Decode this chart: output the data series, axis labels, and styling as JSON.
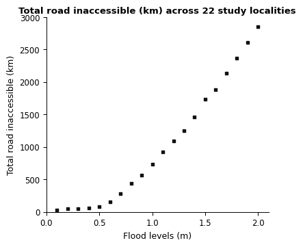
{
  "x": [
    0.1,
    0.2,
    0.3,
    0.4,
    0.5,
    0.6,
    0.7,
    0.8,
    0.9,
    1.0,
    1.1,
    1.2,
    1.3,
    1.4,
    1.5,
    1.6,
    1.7,
    1.8,
    1.9,
    2.0
  ],
  "y": [
    25,
    45,
    55,
    65,
    85,
    150,
    285,
    440,
    565,
    730,
    920,
    1090,
    1250,
    1460,
    1730,
    1880,
    2140,
    2370,
    2610,
    2850
  ],
  "title": "Total road inaccessible (km) across 22 study localities",
  "xlabel": "Flood levels (m)",
  "ylabel": "Total road inaccessible (km)",
  "xlim": [
    0.0,
    2.1
  ],
  "ylim": [
    0,
    3000
  ],
  "xticks": [
    0.0,
    0.5,
    1.0,
    1.5,
    2.0
  ],
  "yticks": [
    0,
    500,
    1000,
    1500,
    2000,
    2500,
    3000
  ],
  "marker": "s",
  "marker_size": 3.5,
  "marker_color": "#111111",
  "background_color": "#ffffff",
  "title_fontsize": 9.5,
  "label_fontsize": 9,
  "tick_fontsize": 8.5
}
